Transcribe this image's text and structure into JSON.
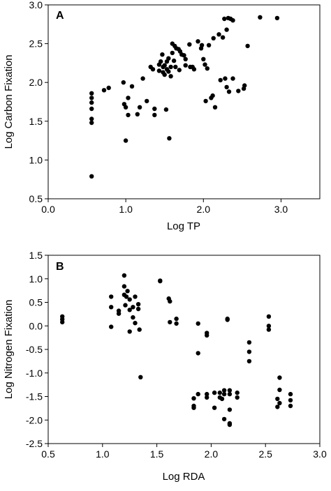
{
  "chart_data": [
    {
      "type": "scatter",
      "panel_label": "A",
      "xlabel": "Log TP",
      "ylabel": "Log Carbon Fixation",
      "xlim": [
        0.0,
        3.5
      ],
      "ylim": [
        0.5,
        3.0
      ],
      "x_ticks": [
        0.0,
        1.0,
        2.0,
        3.0
      ],
      "x_tick_labels": [
        "0.0",
        "1.0",
        "2.0",
        "3.0"
      ],
      "y_ticks": [
        0.5,
        1.0,
        1.5,
        2.0,
        2.5,
        3.0
      ],
      "y_tick_labels": [
        "0.5",
        "1.0",
        "1.5",
        "2.0",
        "2.5",
        "3.0"
      ],
      "grid": false,
      "marker_color": "#000000",
      "points": [
        {
          "x": 0.56,
          "y": 1.86
        },
        {
          "x": 0.56,
          "y": 1.8
        },
        {
          "x": 0.56,
          "y": 1.74
        },
        {
          "x": 0.56,
          "y": 1.66
        },
        {
          "x": 0.56,
          "y": 1.53
        },
        {
          "x": 0.56,
          "y": 1.48
        },
        {
          "x": 0.56,
          "y": 0.79
        },
        {
          "x": 0.72,
          "y": 1.9
        },
        {
          "x": 0.78,
          "y": 1.93
        },
        {
          "x": 0.97,
          "y": 2.0
        },
        {
          "x": 0.98,
          "y": 1.72
        },
        {
          "x": 1.0,
          "y": 1.68
        },
        {
          "x": 1.03,
          "y": 1.58
        },
        {
          "x": 1.0,
          "y": 1.25
        },
        {
          "x": 1.03,
          "y": 1.8
        },
        {
          "x": 1.08,
          "y": 1.95
        },
        {
          "x": 1.15,
          "y": 1.59
        },
        {
          "x": 1.18,
          "y": 1.68
        },
        {
          "x": 1.22,
          "y": 2.05
        },
        {
          "x": 1.27,
          "y": 1.76
        },
        {
          "x": 1.32,
          "y": 2.2
        },
        {
          "x": 1.35,
          "y": 2.17
        },
        {
          "x": 1.37,
          "y": 1.66
        },
        {
          "x": 1.37,
          "y": 1.58
        },
        {
          "x": 1.43,
          "y": 2.15
        },
        {
          "x": 1.43,
          "y": 2.23
        },
        {
          "x": 1.45,
          "y": 2.27
        },
        {
          "x": 1.48,
          "y": 2.13
        },
        {
          "x": 1.48,
          "y": 2.2
        },
        {
          "x": 1.47,
          "y": 2.36
        },
        {
          "x": 1.5,
          "y": 2.22
        },
        {
          "x": 1.5,
          "y": 2.1
        },
        {
          "x": 1.52,
          "y": 1.65
        },
        {
          "x": 1.53,
          "y": 2.17
        },
        {
          "x": 1.53,
          "y": 2.27
        },
        {
          "x": 1.55,
          "y": 2.14
        },
        {
          "x": 1.55,
          "y": 2.31
        },
        {
          "x": 1.56,
          "y": 1.28
        },
        {
          "x": 1.58,
          "y": 2.08
        },
        {
          "x": 1.58,
          "y": 2.2
        },
        {
          "x": 1.6,
          "y": 2.5
        },
        {
          "x": 1.6,
          "y": 2.38
        },
        {
          "x": 1.62,
          "y": 2.28
        },
        {
          "x": 1.63,
          "y": 2.47
        },
        {
          "x": 1.64,
          "y": 2.2
        },
        {
          "x": 1.65,
          "y": 2.44
        },
        {
          "x": 1.68,
          "y": 2.43
        },
        {
          "x": 1.69,
          "y": 2.16
        },
        {
          "x": 1.7,
          "y": 2.4
        },
        {
          "x": 1.72,
          "y": 2.36
        },
        {
          "x": 1.75,
          "y": 2.35
        },
        {
          "x": 1.77,
          "y": 2.3
        },
        {
          "x": 1.77,
          "y": 2.22
        },
        {
          "x": 1.82,
          "y": 2.49
        },
        {
          "x": 1.83,
          "y": 2.2
        },
        {
          "x": 1.86,
          "y": 2.2
        },
        {
          "x": 1.88,
          "y": 2.17
        },
        {
          "x": 1.93,
          "y": 2.53
        },
        {
          "x": 1.97,
          "y": 2.44
        },
        {
          "x": 1.98,
          "y": 2.48
        },
        {
          "x": 2.0,
          "y": 2.3
        },
        {
          "x": 2.02,
          "y": 2.23
        },
        {
          "x": 2.03,
          "y": 1.76
        },
        {
          "x": 2.05,
          "y": 2.18
        },
        {
          "x": 2.07,
          "y": 2.48
        },
        {
          "x": 2.1,
          "y": 1.8
        },
        {
          "x": 2.12,
          "y": 1.83
        },
        {
          "x": 2.13,
          "y": 2.57
        },
        {
          "x": 2.15,
          "y": 1.68
        },
        {
          "x": 2.2,
          "y": 2.62
        },
        {
          "x": 2.22,
          "y": 2.03
        },
        {
          "x": 2.25,
          "y": 2.58
        },
        {
          "x": 2.27,
          "y": 2.82
        },
        {
          "x": 2.28,
          "y": 2.05
        },
        {
          "x": 2.3,
          "y": 2.68
        },
        {
          "x": 2.3,
          "y": 1.94
        },
        {
          "x": 2.32,
          "y": 2.83
        },
        {
          "x": 2.33,
          "y": 1.88
        },
        {
          "x": 2.35,
          "y": 2.82
        },
        {
          "x": 2.38,
          "y": 2.05
        },
        {
          "x": 2.38,
          "y": 2.8
        },
        {
          "x": 2.45,
          "y": 1.89
        },
        {
          "x": 2.52,
          "y": 1.92
        },
        {
          "x": 2.53,
          "y": 1.96
        },
        {
          "x": 2.57,
          "y": 2.47
        },
        {
          "x": 2.73,
          "y": 2.84
        },
        {
          "x": 2.95,
          "y": 2.83
        }
      ]
    },
    {
      "type": "scatter",
      "panel_label": "B",
      "xlabel": "Log RDA",
      "ylabel": "Log Nitrogen Fixation",
      "xlim": [
        0.5,
        3.0
      ],
      "ylim": [
        -2.5,
        1.5
      ],
      "x_ticks": [
        0.5,
        1.0,
        1.5,
        2.0,
        2.5,
        3.0
      ],
      "x_tick_labels": [
        "0.5",
        "1.0",
        "1.5",
        "2.0",
        "2.5",
        "3.0"
      ],
      "y_ticks": [
        -2.5,
        -2.0,
        -1.5,
        -1.0,
        -0.5,
        0.0,
        0.5,
        1.0,
        1.5
      ],
      "y_tick_labels": [
        "-2.5",
        "-2.0",
        "-1.5",
        "-1.0",
        "-0.5",
        "0.0",
        "0.5",
        "1.0",
        "1.5"
      ],
      "grid": false,
      "marker_color": "#000000",
      "points": [
        {
          "x": 0.63,
          "y": 0.2
        },
        {
          "x": 0.63,
          "y": 0.14
        },
        {
          "x": 0.63,
          "y": 0.08
        },
        {
          "x": 1.08,
          "y": 0.62
        },
        {
          "x": 1.08,
          "y": 0.4
        },
        {
          "x": 1.08,
          "y": -0.02
        },
        {
          "x": 1.15,
          "y": 0.32
        },
        {
          "x": 1.15,
          "y": 0.26
        },
        {
          "x": 1.2,
          "y": 1.07
        },
        {
          "x": 1.2,
          "y": 0.84
        },
        {
          "x": 1.2,
          "y": 0.66
        },
        {
          "x": 1.21,
          "y": 0.44
        },
        {
          "x": 1.22,
          "y": 0.62
        },
        {
          "x": 1.23,
          "y": 0.74
        },
        {
          "x": 1.25,
          "y": 0.56
        },
        {
          "x": 1.25,
          "y": 0.34
        },
        {
          "x": 1.25,
          "y": -0.12
        },
        {
          "x": 1.28,
          "y": 0.4
        },
        {
          "x": 1.28,
          "y": 0.18
        },
        {
          "x": 1.3,
          "y": 0.06
        },
        {
          "x": 1.3,
          "y": 0.62
        },
        {
          "x": 1.33,
          "y": 0.46
        },
        {
          "x": 1.33,
          "y": 0.36
        },
        {
          "x": 1.34,
          "y": -0.08
        },
        {
          "x": 1.35,
          "y": -1.09
        },
        {
          "x": 1.53,
          "y": 0.96
        },
        {
          "x": 1.53,
          "y": 0.95
        },
        {
          "x": 1.61,
          "y": 0.58
        },
        {
          "x": 1.62,
          "y": 0.52
        },
        {
          "x": 1.62,
          "y": 0.08
        },
        {
          "x": 1.68,
          "y": 0.15
        },
        {
          "x": 1.68,
          "y": 0.05
        },
        {
          "x": 1.84,
          "y": -1.54
        },
        {
          "x": 1.84,
          "y": -1.7
        },
        {
          "x": 1.84,
          "y": -1.74
        },
        {
          "x": 1.88,
          "y": 0.05
        },
        {
          "x": 1.88,
          "y": -0.58
        },
        {
          "x": 1.88,
          "y": -1.45
        },
        {
          "x": 1.96,
          "y": -0.15
        },
        {
          "x": 1.96,
          "y": -0.2
        },
        {
          "x": 1.96,
          "y": -1.45
        },
        {
          "x": 1.96,
          "y": -1.52
        },
        {
          "x": 2.03,
          "y": -1.42
        },
        {
          "x": 2.03,
          "y": -1.74
        },
        {
          "x": 2.08,
          "y": -1.42
        },
        {
          "x": 2.08,
          "y": -1.52
        },
        {
          "x": 2.1,
          "y": -1.55
        },
        {
          "x": 2.12,
          "y": -1.37
        },
        {
          "x": 2.12,
          "y": -1.45
        },
        {
          "x": 2.12,
          "y": -1.98
        },
        {
          "x": 2.15,
          "y": 0.15
        },
        {
          "x": 2.15,
          "y": 0.13
        },
        {
          "x": 2.17,
          "y": -1.45
        },
        {
          "x": 2.17,
          "y": -1.37
        },
        {
          "x": 2.17,
          "y": -1.78
        },
        {
          "x": 2.17,
          "y": -2.07
        },
        {
          "x": 2.17,
          "y": -2.1
        },
        {
          "x": 2.24,
          "y": -1.42
        },
        {
          "x": 2.24,
          "y": -1.52
        },
        {
          "x": 2.35,
          "y": -0.35
        },
        {
          "x": 2.35,
          "y": -0.55
        },
        {
          "x": 2.35,
          "y": -0.75
        },
        {
          "x": 2.53,
          "y": 0.2
        },
        {
          "x": 2.53,
          "y": 0.0
        },
        {
          "x": 2.53,
          "y": -0.08
        },
        {
          "x": 2.61,
          "y": -1.55
        },
        {
          "x": 2.61,
          "y": -1.72
        },
        {
          "x": 2.63,
          "y": -1.1
        },
        {
          "x": 2.63,
          "y": -1.36
        },
        {
          "x": 2.63,
          "y": -1.64
        },
        {
          "x": 2.73,
          "y": -1.45
        },
        {
          "x": 2.73,
          "y": -1.58
        },
        {
          "x": 2.73,
          "y": -1.7
        }
      ]
    }
  ]
}
